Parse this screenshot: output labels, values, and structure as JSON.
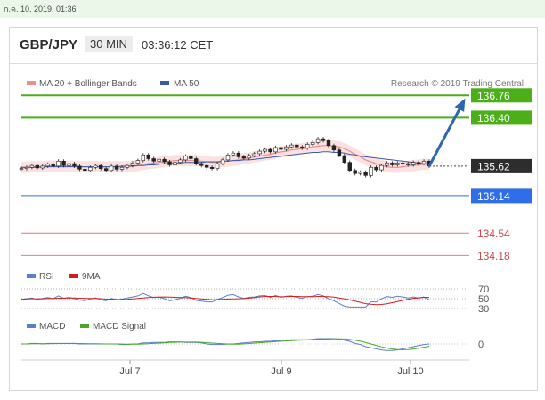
{
  "timestamp": "ก.ค. 10, 2019, 01:36",
  "header": {
    "pair": "GBP/JPY",
    "timeframe": "30 MIN",
    "clock": "03:36:12 CET"
  },
  "legend": {
    "ma20": "MA 20 + Bollinger Bands",
    "ma50": "MA 50",
    "credit": "Research © 2019 Trading Central"
  },
  "colors": {
    "resistance": "#4caf1a",
    "support_line": "#2f6ee8",
    "support": "#e47b7b",
    "current": "#2d2d2d",
    "ma20": "#e88f8f",
    "ma50": "#3a5aa8",
    "rsi": "#5b7fd0",
    "rsi9": "#d21d1d",
    "macd": "#5b7fd0",
    "macd_signal": "#49a629",
    "arrow": "#2e67b1"
  },
  "chart_data": {
    "type": "line",
    "title": "GBP/JPY",
    "timeframe": "30 MIN",
    "x_ticks": [
      "Jul 7",
      "Jul 9",
      "Jul 10"
    ],
    "price_levels": [
      {
        "value": "136.76",
        "kind": "resistance"
      },
      {
        "value": "136.40",
        "kind": "resistance"
      },
      {
        "value": "135.62",
        "kind": "current"
      },
      {
        "value": "135.14",
        "kind": "support_blue"
      },
      {
        "value": "134.54",
        "kind": "support"
      },
      {
        "value": "134.18",
        "kind": "support"
      }
    ],
    "ylim": [
      134.1,
      136.85
    ],
    "close": [
      135.58,
      135.6,
      135.63,
      135.59,
      135.62,
      135.65,
      135.62,
      135.7,
      135.63,
      135.66,
      135.62,
      135.57,
      135.55,
      135.6,
      135.63,
      135.58,
      135.55,
      135.62,
      135.57,
      135.6,
      135.63,
      135.67,
      135.71,
      135.8,
      135.74,
      135.7,
      135.73,
      135.69,
      135.64,
      135.68,
      135.72,
      135.78,
      135.74,
      135.66,
      135.63,
      135.6,
      135.58,
      135.66,
      135.72,
      135.8,
      135.83,
      135.77,
      135.75,
      135.79,
      135.82,
      135.86,
      135.89,
      135.85,
      135.92,
      135.89,
      135.93,
      135.96,
      135.93,
      135.91,
      135.97,
      136.0,
      136.06,
      136.03,
      135.95,
      135.88,
      135.79,
      135.68,
      135.55,
      135.5,
      135.52,
      135.47,
      135.6,
      135.56,
      135.63,
      135.67,
      135.64,
      135.67,
      135.66,
      135.64,
      135.68,
      135.66,
      135.7,
      135.62
    ],
    "ma20": [
      135.6,
      135.6,
      135.61,
      135.61,
      135.61,
      135.62,
      135.62,
      135.62,
      135.62,
      135.62,
      135.62,
      135.61,
      135.61,
      135.61,
      135.61,
      135.61,
      135.61,
      135.61,
      135.61,
      135.61,
      135.61,
      135.62,
      135.63,
      135.65,
      135.66,
      135.67,
      135.68,
      135.69,
      135.7,
      135.71,
      135.71,
      135.71,
      135.71,
      135.71,
      135.7,
      135.69,
      135.68,
      135.68,
      135.69,
      135.7,
      135.71,
      135.72,
      135.74,
      135.75,
      135.77,
      135.78,
      135.8,
      135.81,
      135.83,
      135.85,
      135.86,
      135.88,
      135.89,
      135.9,
      135.91,
      135.93,
      135.94,
      135.95,
      135.95,
      135.94,
      135.93,
      135.9,
      135.86,
      135.81,
      135.77,
      135.72,
      135.69,
      135.66,
      135.63,
      135.61,
      135.6,
      135.6,
      135.61,
      135.62,
      135.63,
      135.64,
      135.65,
      135.65
    ],
    "ma50": [
      135.6,
      135.6,
      135.6,
      135.6,
      135.61,
      135.61,
      135.61,
      135.61,
      135.61,
      135.61,
      135.61,
      135.61,
      135.61,
      135.61,
      135.61,
      135.61,
      135.61,
      135.61,
      135.61,
      135.62,
      135.62,
      135.62,
      135.63,
      135.63,
      135.64,
      135.64,
      135.65,
      135.66,
      135.66,
      135.67,
      135.67,
      135.68,
      135.68,
      135.68,
      135.68,
      135.69,
      135.69,
      135.69,
      135.7,
      135.7,
      135.71,
      135.71,
      135.72,
      135.72,
      135.73,
      135.74,
      135.75,
      135.76,
      135.77,
      135.78,
      135.79,
      135.8,
      135.81,
      135.82,
      135.83,
      135.84,
      135.84,
      135.85,
      135.85,
      135.84,
      135.84,
      135.83,
      135.81,
      135.8,
      135.78,
      135.77,
      135.76,
      135.75,
      135.74,
      135.73,
      135.72,
      135.71,
      135.7,
      135.69,
      135.68,
      135.67,
      135.66,
      135.65
    ],
    "rsi": {
      "labels": [
        "70",
        "50",
        "30"
      ],
      "label": "RSI",
      "label_9ma": "9MA"
    },
    "macd": {
      "labels": [
        "0"
      ],
      "label": "MACD",
      "label_signal": "MACD Signal"
    }
  }
}
